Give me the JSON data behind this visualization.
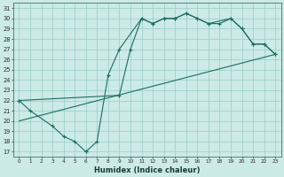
{
  "xlabel": "Humidex (Indice chaleur)",
  "bg_color": "#cceae6",
  "grid_color": "#99ccc6",
  "line_color": "#1a6e60",
  "xlim": [
    -0.5,
    23.5
  ],
  "ylim": [
    16.5,
    31.5
  ],
  "yticks": [
    17,
    18,
    19,
    20,
    21,
    22,
    23,
    24,
    25,
    26,
    27,
    28,
    29,
    30,
    31
  ],
  "xticks": [
    0,
    1,
    2,
    3,
    4,
    5,
    6,
    7,
    8,
    9,
    10,
    11,
    12,
    13,
    14,
    15,
    16,
    17,
    18,
    19,
    20,
    21,
    22,
    23
  ],
  "line1_x": [
    0,
    1,
    3,
    4,
    5,
    6,
    6,
    7,
    8,
    9,
    11,
    12,
    13,
    14,
    15,
    16,
    17,
    18,
    19,
    20,
    21,
    22,
    23
  ],
  "line1_y": [
    22.0,
    21.0,
    19.5,
    18.5,
    18.0,
    17.0,
    17.0,
    18.0,
    24.5,
    27.0,
    30.0,
    29.5,
    30.0,
    30.0,
    30.5,
    30.0,
    29.5,
    29.5,
    30.0,
    29.0,
    27.5,
    27.5,
    26.5
  ],
  "line2_x": [
    0,
    23
  ],
  "line2_y": [
    20.0,
    26.5
  ],
  "line3_x": [
    0,
    9,
    10,
    11,
    12,
    13,
    14,
    15,
    16,
    17,
    19,
    20,
    21,
    22,
    23
  ],
  "line3_y": [
    22.0,
    22.5,
    27.0,
    30.0,
    29.5,
    30.0,
    30.0,
    30.5,
    30.0,
    29.5,
    30.0,
    29.0,
    27.5,
    27.5,
    26.5
  ]
}
